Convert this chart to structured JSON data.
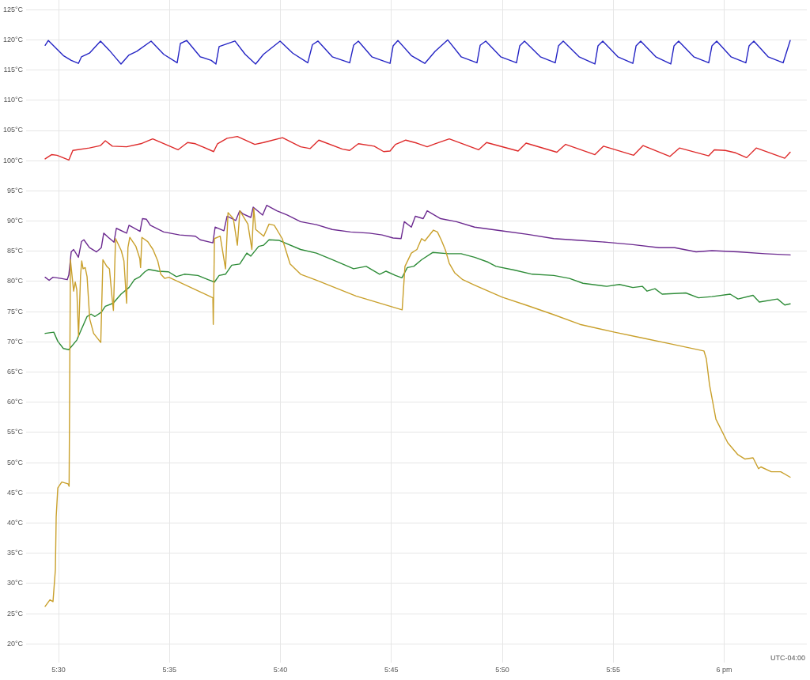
{
  "chart_data": {
    "type": "line",
    "grid": true,
    "marker": "none",
    "xlim": [
      5.4756,
      6.0621
    ],
    "ylim": [
      16.9,
      126.6
    ],
    "xticks": [
      {
        "value": 5.5,
        "label": "5:30"
      },
      {
        "value": 5.58333,
        "label": "5:35"
      },
      {
        "value": 5.66667,
        "label": "5:40"
      },
      {
        "value": 5.75,
        "label": "5:45"
      },
      {
        "value": 5.83333,
        "label": "5:50"
      },
      {
        "value": 5.91667,
        "label": "5:55"
      },
      {
        "value": 6,
        "label": "6 pm"
      }
    ],
    "yticks": [
      {
        "value": 20,
        "label": "20°C"
      },
      {
        "value": 25,
        "label": "25°C"
      },
      {
        "value": 30,
        "label": "30°C"
      },
      {
        "value": 35,
        "label": "35°C"
      },
      {
        "value": 40,
        "label": "40°C"
      },
      {
        "value": 45,
        "label": "45°C"
      },
      {
        "value": 50,
        "label": "50°C"
      },
      {
        "value": 55,
        "label": "55°C"
      },
      {
        "value": 60,
        "label": "60°C"
      },
      {
        "value": 65,
        "label": "65°C"
      },
      {
        "value": 70,
        "label": "70°C"
      },
      {
        "value": 75,
        "label": "75°C"
      },
      {
        "value": 80,
        "label": "80°C"
      },
      {
        "value": 85,
        "label": "85°C"
      },
      {
        "value": 90,
        "label": "90°C"
      },
      {
        "value": 95,
        "label": "95°C"
      },
      {
        "value": 100,
        "label": "100°C"
      },
      {
        "value": 105,
        "label": "105°C"
      },
      {
        "value": 110,
        "label": "110°C"
      },
      {
        "value": 115,
        "label": "115°C"
      },
      {
        "value": 120,
        "label": "120°C"
      },
      {
        "value": 125,
        "label": "125°C"
      }
    ],
    "annotations": [
      "UTC-04:00"
    ],
    "series": [
      {
        "color": "#2424c4",
        "x": [
          5.4899,
          5.4923,
          5.5036,
          5.5095,
          5.5149,
          5.5172,
          5.5232,
          5.5315,
          5.538,
          5.5434,
          5.5469,
          5.5529,
          5.5588,
          5.5695,
          5.579,
          5.5891,
          5.5915,
          5.5963,
          5.6064,
          5.6147,
          5.6182,
          5.6206,
          5.6325,
          5.6402,
          5.648,
          5.6539,
          5.6664,
          5.6759,
          5.6872,
          5.6907,
          5.6949,
          5.7056,
          5.7187,
          5.7216,
          5.7252,
          5.7353,
          5.749,
          5.7513,
          5.7549,
          5.765,
          5.7751,
          5.7828,
          5.7923,
          5.8024,
          5.8143,
          5.8167,
          5.8209,
          5.8321,
          5.844,
          5.8464,
          5.85,
          5.8619,
          5.8731,
          5.8755,
          5.8791,
          5.891,
          5.9029,
          5.9052,
          5.9088,
          5.9201,
          5.9314,
          5.9338,
          5.9373,
          5.9486,
          5.9599,
          5.9623,
          5.9658,
          5.9771,
          5.9884,
          5.9908,
          5.9944,
          6.0051,
          6.0163,
          6.0187,
          6.0223,
          6.033,
          6.0443,
          6.0496
        ],
        "values": [
          119.1,
          119.9,
          117.4,
          116.6,
          116.1,
          117.2,
          117.8,
          119.8,
          118.3,
          116.9,
          116.0,
          117.5,
          118.1,
          119.8,
          117.6,
          116.2,
          119.4,
          119.9,
          117.2,
          116.6,
          116.0,
          118.9,
          119.8,
          117.6,
          116.0,
          117.6,
          119.8,
          117.8,
          116.2,
          119.2,
          119.8,
          117.2,
          116.2,
          119.1,
          119.8,
          117.2,
          116.1,
          119.0,
          119.9,
          117.4,
          116.1,
          118.1,
          120.0,
          117.2,
          116.2,
          119.1,
          119.8,
          117.2,
          116.2,
          119.0,
          119.8,
          117.2,
          116.2,
          119.0,
          119.8,
          117.2,
          116.0,
          119.0,
          119.8,
          117.2,
          116.1,
          119.0,
          119.8,
          117.2,
          116.0,
          119.0,
          119.8,
          117.2,
          116.2,
          119.0,
          119.8,
          117.2,
          116.2,
          119.0,
          119.8,
          117.2,
          116.2,
          119.9
        ]
      },
      {
        "color": "#de2a2a",
        "x": [
          5.4899,
          5.4947,
          5.4988,
          5.5077,
          5.5107,
          5.5232,
          5.5315,
          5.5351,
          5.5404,
          5.5511,
          5.5618,
          5.5707,
          5.5897,
          5.5969,
          5.6028,
          5.6165,
          5.6194,
          5.6266,
          5.6343,
          5.6474,
          5.6539,
          5.6682,
          5.6818,
          5.6889,
          5.6955,
          5.7133,
          5.7187,
          5.7252,
          5.7371,
          5.7442,
          5.749,
          5.7531,
          5.7608,
          5.7692,
          5.7769,
          5.7828,
          5.7935,
          5.8155,
          5.8215,
          5.8452,
          5.8512,
          5.8743,
          5.8809,
          5.9029,
          5.9094,
          5.932,
          5.9391,
          5.9593,
          5.9664,
          5.9884,
          5.9926,
          6.0009,
          6.0086,
          6.0169,
          6.0241,
          6.0455,
          6.0496
        ],
        "values": [
          100.3,
          101.0,
          100.9,
          100.1,
          101.7,
          102.1,
          102.5,
          103.3,
          102.4,
          102.3,
          102.8,
          103.6,
          101.8,
          103.0,
          102.8,
          101.5,
          102.8,
          103.7,
          104.0,
          102.7,
          103.0,
          103.8,
          102.3,
          102.0,
          103.4,
          101.9,
          101.7,
          102.8,
          102.4,
          101.5,
          101.6,
          102.7,
          103.4,
          102.9,
          102.3,
          102.8,
          103.6,
          101.8,
          103.0,
          101.6,
          102.9,
          101.4,
          102.7,
          101.0,
          102.4,
          100.9,
          102.5,
          100.7,
          102.1,
          100.8,
          101.8,
          101.7,
          101.3,
          100.5,
          102.1,
          100.4,
          101.4
        ]
      },
      {
        "color": "#6c2a90",
        "x": [
          5.4899,
          5.4929,
          5.4958,
          5.5018,
          5.5065,
          5.5077,
          5.5095,
          5.5113,
          5.5149,
          5.5172,
          5.519,
          5.5232,
          5.5285,
          5.5321,
          5.5339,
          5.5374,
          5.5416,
          5.5434,
          5.5511,
          5.5529,
          5.5612,
          5.563,
          5.566,
          5.5689,
          5.579,
          5.5909,
          5.6028,
          5.6064,
          5.6159,
          5.6176,
          5.6242,
          5.6266,
          5.6331,
          5.6361,
          5.6384,
          5.6444,
          5.6462,
          5.6533,
          5.6563,
          5.664,
          5.6717,
          5.6818,
          5.6937,
          5.7056,
          5.7193,
          5.7335,
          5.743,
          5.7513,
          5.7573,
          5.7597,
          5.765,
          5.768,
          5.7739,
          5.7769,
          5.787,
          5.7989,
          5.8125,
          5.8321,
          5.8523,
          5.872,
          5.8916,
          5.9118,
          5.9314,
          5.951,
          5.9629,
          5.9789,
          5.9908,
          6.0104,
          6.0306,
          6.0496
        ],
        "values": [
          80.7,
          80.2,
          80.7,
          80.5,
          80.3,
          81.1,
          84.9,
          85.3,
          84.0,
          86.6,
          86.9,
          85.6,
          84.9,
          85.6,
          88.0,
          87.3,
          86.5,
          88.8,
          88.0,
          89.3,
          88.3,
          90.4,
          90.3,
          89.3,
          88.2,
          87.7,
          87.5,
          86.9,
          86.4,
          89.0,
          88.4,
          90.8,
          90.1,
          91.7,
          91.2,
          90.6,
          92.3,
          91.0,
          92.6,
          91.7,
          91.0,
          89.9,
          89.4,
          88.6,
          88.2,
          88.0,
          87.7,
          87.2,
          87.1,
          89.9,
          89.0,
          90.8,
          90.4,
          91.7,
          90.4,
          89.9,
          89.0,
          88.4,
          87.8,
          87.1,
          86.8,
          86.5,
          86.1,
          85.6,
          85.6,
          84.9,
          85.1,
          84.9,
          84.6,
          84.4
        ]
      },
      {
        "color": "#2e8c38",
        "x": [
          5.4899,
          5.4964,
          5.4994,
          5.5036,
          5.5077,
          5.5137,
          5.5154,
          5.5214,
          5.5244,
          5.5273,
          5.5321,
          5.5351,
          5.541,
          5.5469,
          5.5529,
          5.557,
          5.5612,
          5.5648,
          5.5677,
          5.5749,
          5.5826,
          5.5885,
          5.5945,
          5.6046,
          5.6123,
          5.6171,
          5.6206,
          5.6254,
          5.6301,
          5.6361,
          5.6414,
          5.6444,
          5.6503,
          5.6539,
          5.6581,
          5.6658,
          5.6699,
          5.6818,
          5.6937,
          5.7056,
          5.7133,
          5.7216,
          5.7311,
          5.7412,
          5.746,
          5.7531,
          5.7579,
          5.762,
          5.7668,
          5.7727,
          5.781,
          5.7929,
          5.8024,
          5.8125,
          5.8226,
          5.8286,
          5.8422,
          5.8559,
          5.872,
          5.8838,
          5.8939,
          5.9118,
          5.9213,
          5.9314,
          5.9385,
          5.9421,
          5.948,
          5.9534,
          5.9712,
          5.9807,
          5.9908,
          6.0045,
          6.0104,
          6.0217,
          6.0264,
          6.0401,
          6.0455,
          6.0496
        ],
        "values": [
          71.4,
          71.6,
          70.1,
          68.9,
          68.7,
          70.3,
          71.2,
          74.2,
          74.6,
          74.2,
          74.9,
          75.9,
          76.4,
          77.9,
          79.0,
          80.3,
          80.8,
          81.6,
          82.0,
          81.7,
          81.6,
          80.8,
          81.2,
          81.0,
          80.3,
          79.9,
          81.0,
          81.2,
          82.7,
          82.9,
          84.7,
          84.2,
          85.8,
          86.0,
          86.9,
          86.8,
          86.4,
          85.3,
          84.7,
          83.6,
          82.9,
          82.1,
          82.5,
          81.2,
          81.7,
          81.0,
          80.6,
          82.3,
          82.5,
          83.6,
          84.8,
          84.6,
          84.6,
          84.0,
          83.2,
          82.5,
          81.9,
          81.2,
          81.0,
          80.5,
          79.7,
          79.2,
          79.5,
          79.0,
          79.2,
          78.4,
          78.8,
          77.9,
          78.1,
          77.3,
          77.5,
          77.9,
          77.1,
          77.7,
          76.6,
          77.1,
          76.1,
          76.3
        ]
      },
      {
        "color": "#c9a02c",
        "x": [
          5.4899,
          5.4935,
          5.4958,
          5.4976,
          5.4982,
          5.4994,
          5.5024,
          5.5071,
          5.5079,
          5.5089,
          5.5113,
          5.5125,
          5.5137,
          5.515,
          5.5165,
          5.5174,
          5.5184,
          5.52,
          5.5214,
          5.5234,
          5.5263,
          5.5317,
          5.5333,
          5.5362,
          5.5382,
          5.5402,
          5.5412,
          5.5428,
          5.5471,
          5.5491,
          5.5511,
          5.5521,
          5.5535,
          5.5581,
          5.561,
          5.5616,
          5.5626,
          5.567,
          5.5709,
          5.5745,
          5.5768,
          5.5798,
          5.5828,
          5.6159,
          5.6162,
          5.6171,
          5.6214,
          5.6254,
          5.6273,
          5.6313,
          5.6343,
          5.6362,
          5.6422,
          5.6452,
          5.6466,
          5.6481,
          5.6541,
          5.6581,
          5.662,
          5.668,
          5.6739,
          5.6818,
          5.6937,
          5.7234,
          5.7581,
          5.7602,
          5.765,
          5.7692,
          5.7727,
          5.7751,
          5.7816,
          5.7846,
          5.7876,
          5.7906,
          5.7935,
          5.7977,
          5.8036,
          5.8125,
          5.8333,
          5.8523,
          5.872,
          5.8916,
          5.9177,
          5.9373,
          5.9611,
          5.9848,
          5.9866,
          5.989,
          5.9938,
          6.0027,
          6.0104,
          6.0157,
          6.0217,
          6.0258,
          6.0276,
          6.0354,
          6.0425,
          6.0496
        ],
        "values": [
          26.2,
          27.3,
          27.0,
          32.3,
          41.0,
          45.8,
          46.8,
          46.5,
          46.1,
          83.6,
          78.4,
          79.9,
          78.6,
          70.9,
          81.0,
          83.4,
          82.1,
          82.3,
          80.8,
          73.8,
          71.4,
          69.9,
          83.6,
          82.5,
          82.1,
          77.3,
          75.2,
          87.1,
          85.1,
          83.4,
          76.4,
          85.6,
          87.3,
          85.8,
          83.8,
          82.3,
          87.3,
          86.6,
          85.3,
          83.4,
          81.2,
          80.5,
          80.7,
          77.3,
          72.9,
          87.1,
          87.5,
          82.1,
          91.4,
          90.4,
          86.0,
          91.7,
          89.5,
          85.3,
          92.1,
          88.6,
          87.5,
          89.5,
          89.3,
          87.1,
          82.9,
          81.2,
          80.2,
          77.6,
          75.3,
          82.5,
          84.7,
          85.3,
          87.1,
          86.7,
          88.5,
          88.2,
          86.8,
          85.2,
          83.0,
          81.4,
          80.3,
          79.4,
          77.4,
          76.0,
          74.5,
          72.9,
          71.6,
          70.7,
          69.6,
          68.5,
          67.2,
          62.9,
          57.2,
          53.3,
          51.3,
          50.6,
          50.8,
          49.0,
          49.3,
          48.5,
          48.5,
          47.6
        ]
      }
    ]
  }
}
